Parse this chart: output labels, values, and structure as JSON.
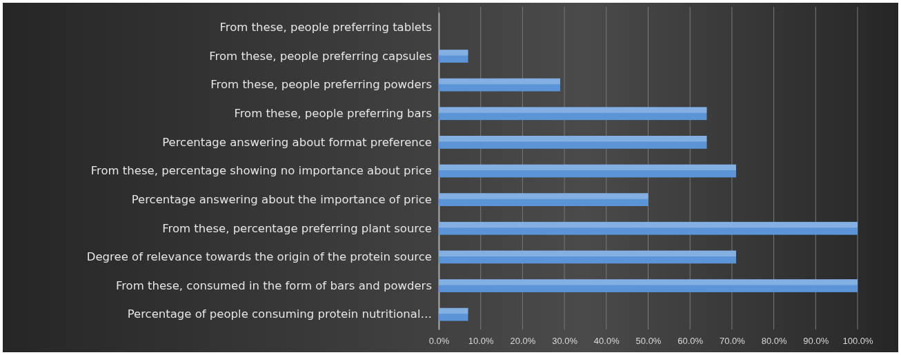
{
  "chart_data": {
    "type": "bar",
    "orientation": "horizontal",
    "categories": [
      "From these, people preferring tablets",
      "From these, people preferring capsules",
      "From these, people preferring powders",
      "From these, people preferring bars",
      "Percentage answering about format preference",
      "From these, percentage showing no importance about price",
      "Percentage answering about the importance of price",
      "From these, percentage preferring plant source",
      "Degree of relevance towards the origin of the protein source",
      "From these, consumed in the form of bars and powders",
      "Percentage of people consuming protein nutritional…"
    ],
    "values": [
      0,
      7,
      29,
      64,
      64,
      71,
      50,
      100,
      71,
      100,
      7
    ],
    "color": "#5b95d8",
    "xlim": [
      0,
      100
    ],
    "xticks": [
      {
        "value": 0,
        "label": "0.0%"
      },
      {
        "value": 10,
        "label": "10.0%"
      },
      {
        "value": 20,
        "label": "20.0%"
      },
      {
        "value": 30,
        "label": "30.0%"
      },
      {
        "value": 40,
        "label": "40.0%"
      },
      {
        "value": 50,
        "label": "50.0%"
      },
      {
        "value": 60,
        "label": "60.0%"
      },
      {
        "value": 70,
        "label": "70.0%"
      },
      {
        "value": 80,
        "label": "80.0%"
      },
      {
        "value": 90,
        "label": "90.0%"
      },
      {
        "value": 100,
        "label": "100.0%"
      }
    ],
    "grid": "x"
  }
}
